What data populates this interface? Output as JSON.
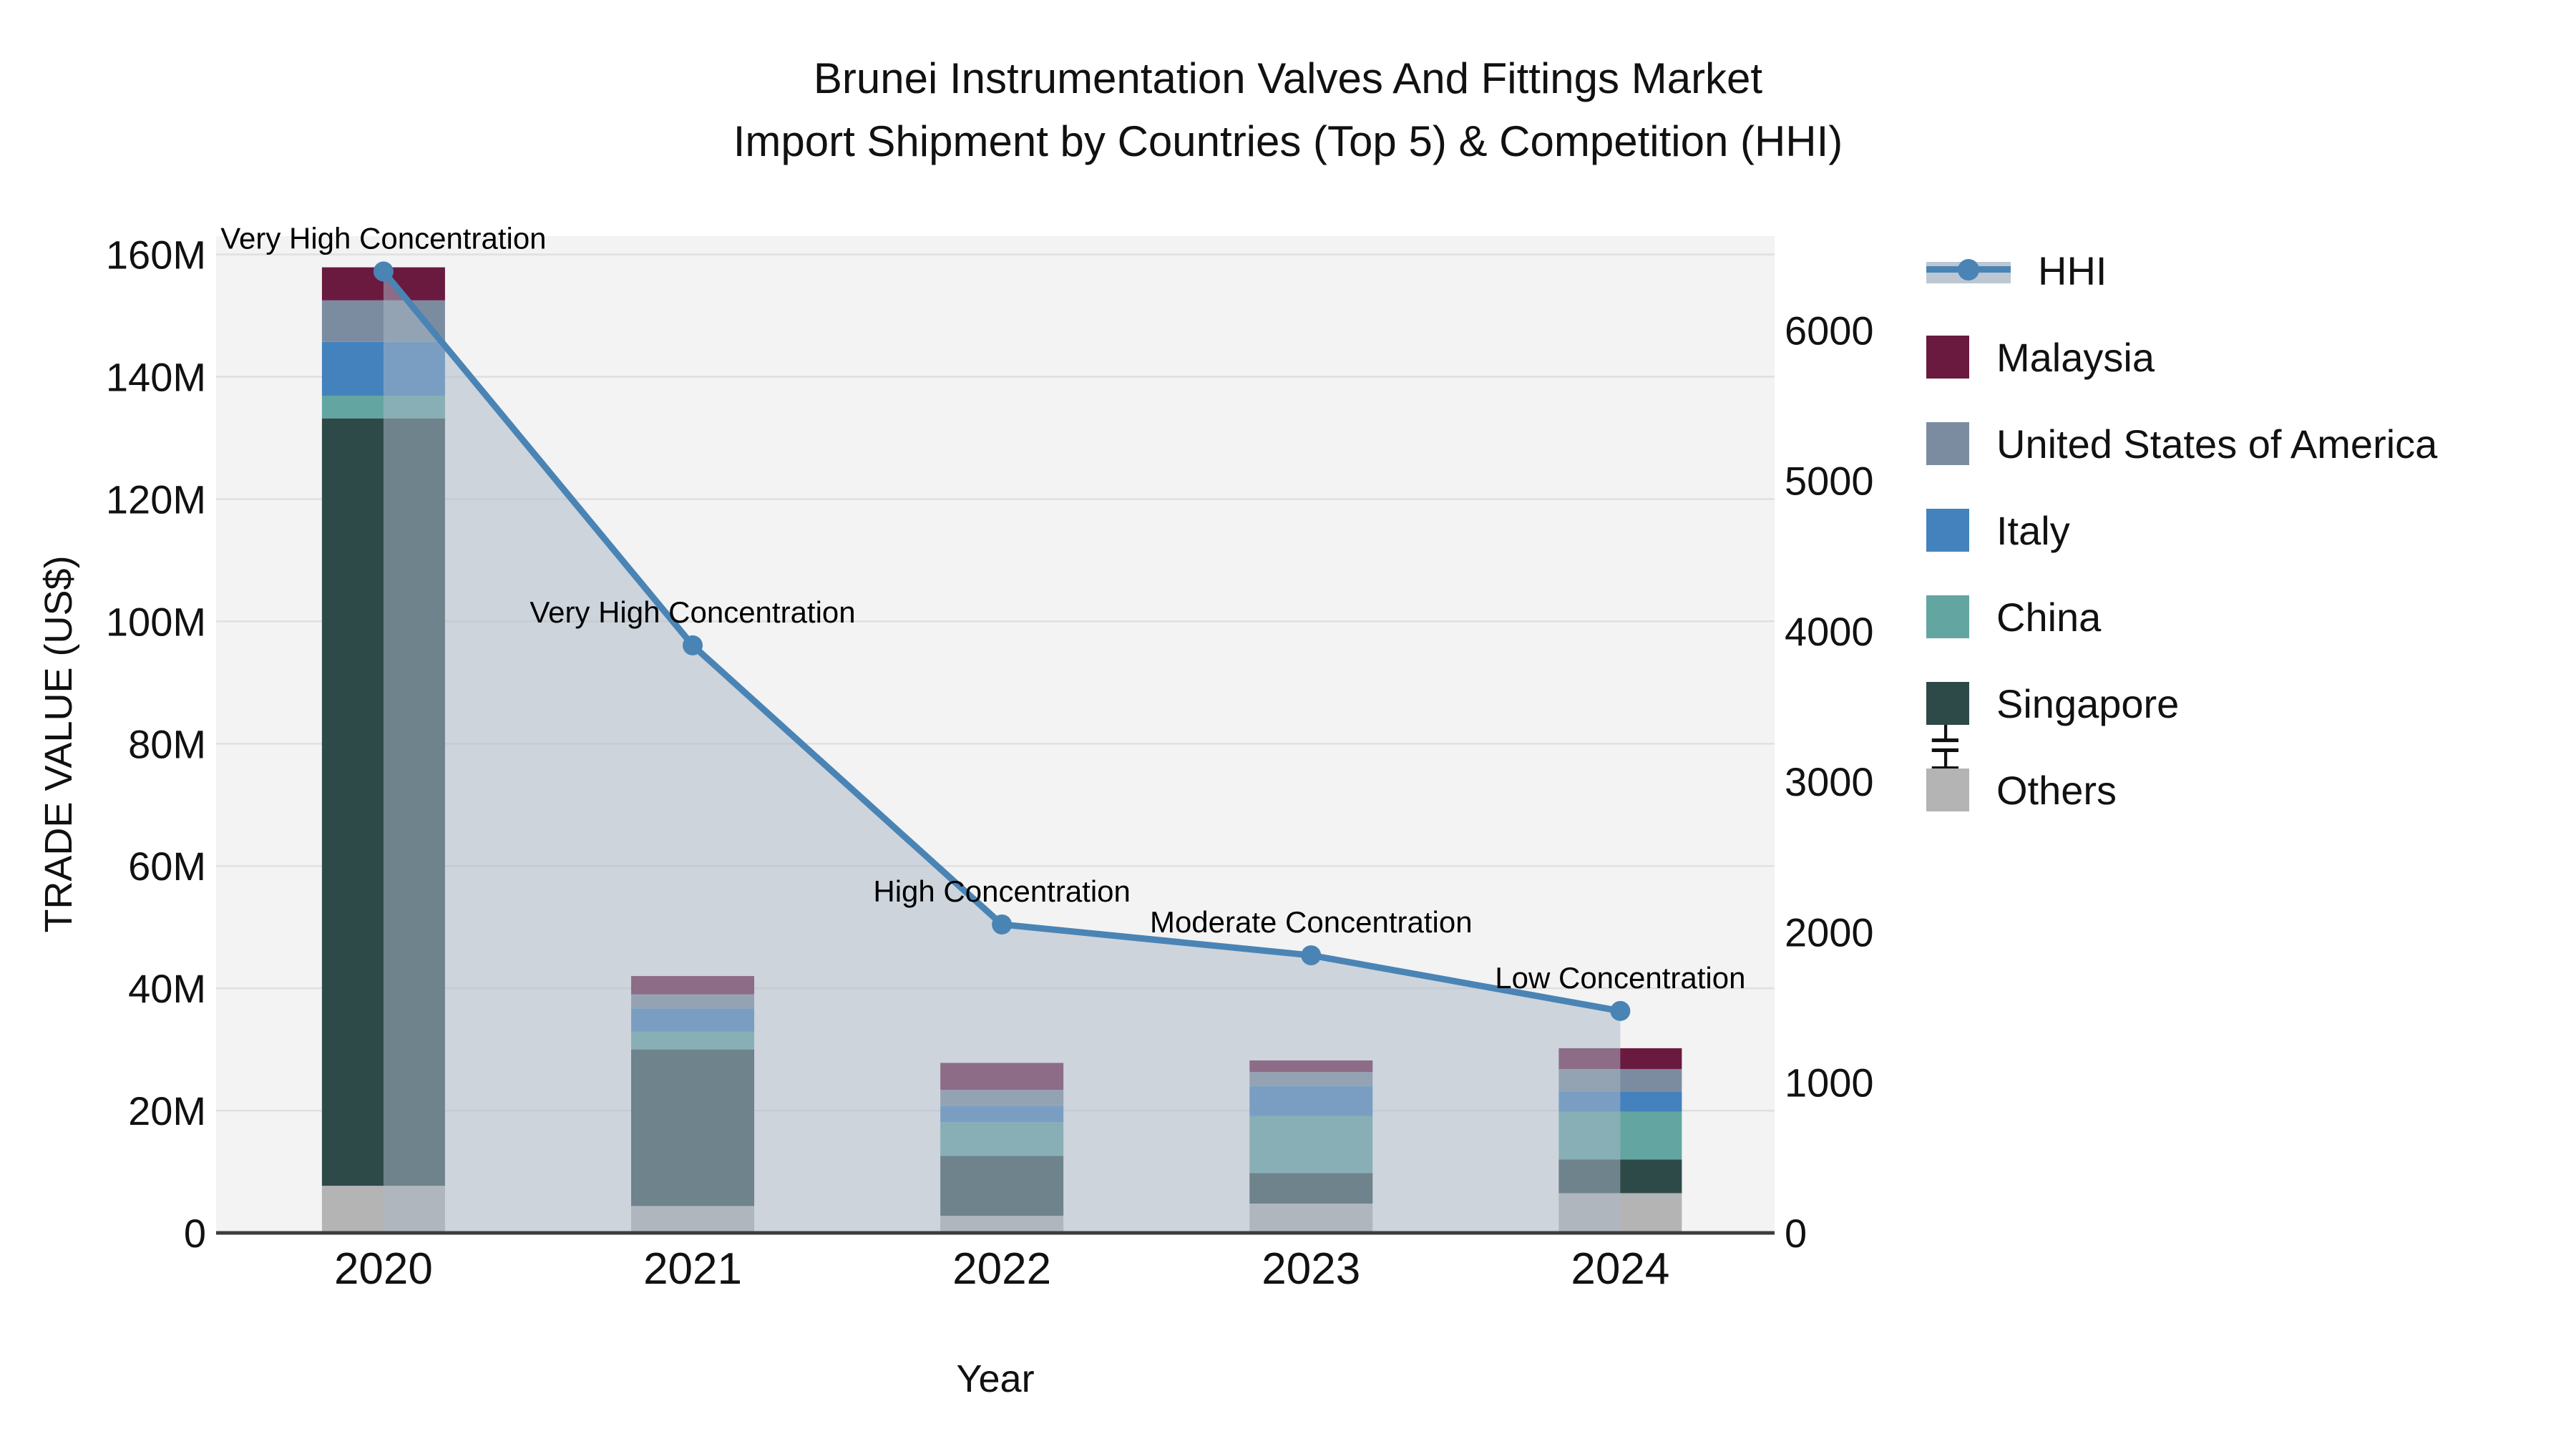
{
  "title": {
    "line1": "Brunei Instrumentation Valves And Fittings Market",
    "line2": "Import Shipment by Countries (Top 5) & Competition (HHI)"
  },
  "colors": {
    "hhi_line": "#4a84b5",
    "hhi_area_fill": "rgba(171,185,199,0.52)",
    "plot_background": "#f3f3f3",
    "gridline": "#e0e0e0",
    "axis_spine": "#3c3c3c",
    "malaysia": "#6b1a3f",
    "united_states": "#7c8ca0",
    "italy": "#4382bd",
    "china": "#63a5a1",
    "singapore": "#2d4a49",
    "others": "#b4b4b4"
  },
  "chart_data": {
    "type": "bar+line",
    "title": "Brunei Instrumentation Valves And Fittings Market Import Shipment by Countries (Top 5) & Competition (HHI)",
    "categories": [
      "2020",
      "2021",
      "2022",
      "2023",
      "2024"
    ],
    "xlabel": "Year",
    "stack_order_bottom_to_top": [
      "Others",
      "Singapore",
      "China",
      "Italy",
      "United States of America",
      "Malaysia"
    ],
    "series": [
      {
        "name": "Malaysia",
        "color": "#6b1a3f",
        "values_musd": [
          5.4,
          3.0,
          4.4,
          1.9,
          3.4
        ]
      },
      {
        "name": "United States of America",
        "color": "#7c8ca0",
        "values_musd": [
          6.8,
          2.3,
          2.6,
          2.3,
          3.7
        ]
      },
      {
        "name": "Italy",
        "color": "#4382bd",
        "values_musd": [
          8.8,
          3.8,
          2.7,
          4.9,
          3.3
        ]
      },
      {
        "name": "China",
        "color": "#63a5a1",
        "values_musd": [
          3.7,
          2.9,
          5.5,
          9.3,
          7.8
        ]
      },
      {
        "name": "Singapore",
        "color": "#2d4a49",
        "values_musd": [
          125.5,
          25.6,
          9.8,
          5.0,
          5.5
        ]
      },
      {
        "name": "Others",
        "color": "#b4b4b4",
        "values_musd": [
          7.7,
          4.4,
          2.8,
          4.8,
          6.5
        ]
      }
    ],
    "bar_totals_musd": [
      157.9,
      42.0,
      27.8,
      28.2,
      30.2
    ],
    "hhi_series": {
      "name": "HHI",
      "line_color": "#4a84b5",
      "area_fill": "rgba(171,185,199,0.52)",
      "values": [
        6390,
        3905,
        2050,
        1845,
        1475
      ],
      "annotations": [
        "Very High Concentration",
        "Very High Concentration",
        "High Concentration",
        "Moderate Concentration",
        "Low Concentration"
      ]
    },
    "left_axis": {
      "label": "TRADE VALUE (US$)",
      "tick_labels": [
        "0",
        "20M",
        "40M",
        "60M",
        "80M",
        "100M",
        "120M",
        "140M",
        "160M"
      ],
      "tick_values_musd": [
        0,
        20,
        40,
        60,
        80,
        100,
        120,
        140,
        160
      ],
      "range_musd": [
        0,
        163
      ]
    },
    "right_axis": {
      "label": "HHI",
      "tick_labels": [
        "0",
        "1000",
        "2000",
        "3000",
        "4000",
        "5000",
        "6000"
      ],
      "tick_values": [
        0,
        1000,
        2000,
        3000,
        4000,
        5000,
        6000
      ],
      "range": [
        0,
        6625
      ]
    },
    "grid": "horizontal-only",
    "legend_position": "right",
    "legend": [
      {
        "label": "HHI",
        "type": "line"
      },
      {
        "label": "Malaysia",
        "type": "swatch",
        "color": "#6b1a3f"
      },
      {
        "label": "United States of America",
        "type": "swatch",
        "color": "#7c8ca0"
      },
      {
        "label": "Italy",
        "type": "swatch",
        "color": "#4382bd"
      },
      {
        "label": "China",
        "type": "swatch",
        "color": "#63a5a1"
      },
      {
        "label": "Singapore",
        "type": "swatch",
        "color": "#2d4a49"
      },
      {
        "label": "Others",
        "type": "swatch",
        "color": "#b4b4b4"
      }
    ]
  }
}
